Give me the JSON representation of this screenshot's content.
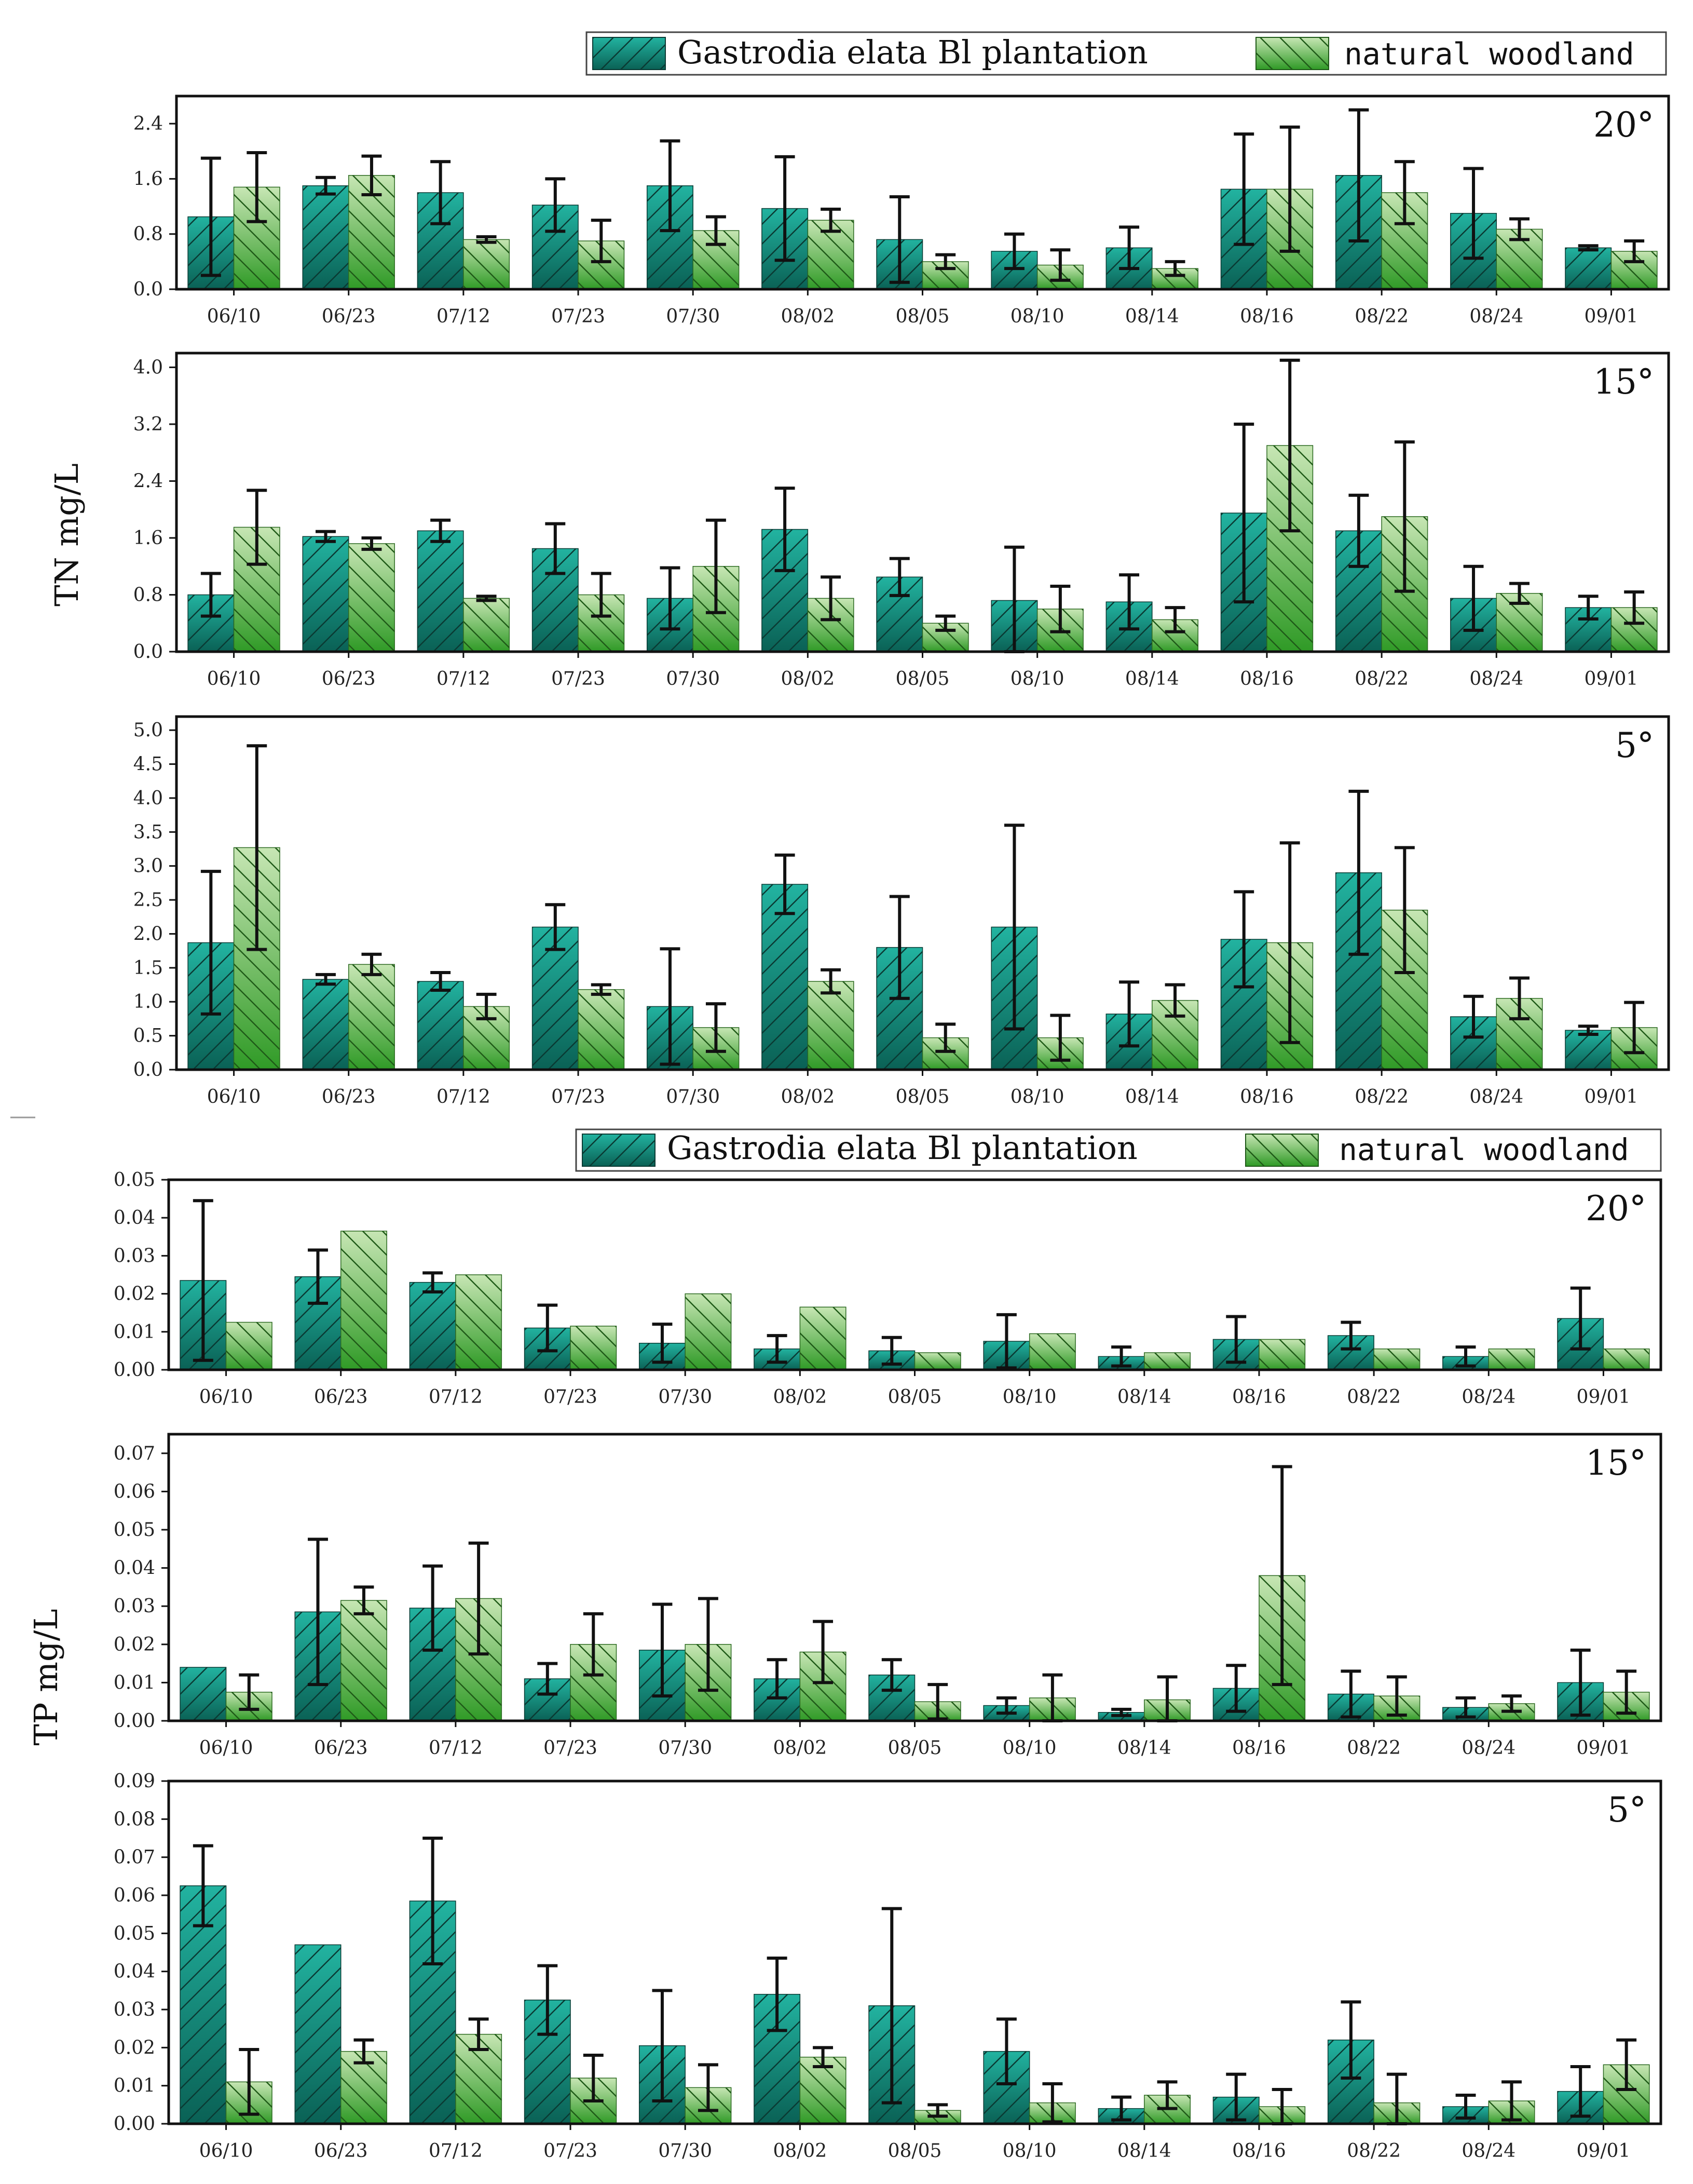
{
  "colors": {
    "plantation": "#16a08f",
    "plantation_dark": "#0c5a50",
    "woodland": "#8fcf6a",
    "woodland_dark": "#3e9a2f"
  },
  "legend_top": {
    "series1": "Gastrodia elata Bl plantation",
    "series2": "natural woodland"
  },
  "legend_bottom": {
    "series1": "Gastrodia elata Bl plantation",
    "series2": "natural woodland"
  },
  "ylabels": {
    "tn": "TN mg/L",
    "tp": "TP mg/L"
  },
  "chart_data": [
    {
      "type": "bar",
      "title": "20°",
      "ylabel": "TN mg/L",
      "ylim": [
        0,
        2.8
      ],
      "yticks": [
        "0.0",
        "0.8",
        "1.6",
        "2.4"
      ],
      "categories": [
        "06/10",
        "06/23",
        "07/12",
        "07/23",
        "07/30",
        "08/02",
        "08/05",
        "08/10",
        "08/14",
        "08/16",
        "08/22",
        "08/24",
        "09/01"
      ],
      "series": [
        {
          "name": "Gastrodia elata Bl plantation",
          "values": [
            1.05,
            1.5,
            1.4,
            1.22,
            1.5,
            1.17,
            0.72,
            0.55,
            0.6,
            1.45,
            1.65,
            1.1,
            0.6
          ],
          "errors": [
            0.85,
            0.12,
            0.45,
            0.38,
            0.65,
            0.75,
            0.62,
            0.25,
            0.3,
            0.8,
            0.95,
            0.65,
            0.03
          ]
        },
        {
          "name": "natural woodland",
          "values": [
            1.48,
            1.65,
            0.72,
            0.7,
            0.85,
            1.0,
            0.4,
            0.35,
            0.3,
            1.45,
            1.4,
            0.87,
            0.55
          ],
          "errors": [
            0.5,
            0.28,
            0.04,
            0.3,
            0.2,
            0.16,
            0.1,
            0.22,
            0.1,
            0.9,
            0.45,
            0.15,
            0.15
          ]
        }
      ]
    },
    {
      "type": "bar",
      "title": "15°",
      "ylabel": "TN mg/L",
      "ylim": [
        0,
        4.2
      ],
      "yticks": [
        "0.0",
        "0.8",
        "1.6",
        "2.4",
        "3.2",
        "4.0"
      ],
      "categories": [
        "06/10",
        "06/23",
        "07/12",
        "07/23",
        "07/30",
        "08/02",
        "08/05",
        "08/10",
        "08/14",
        "08/16",
        "08/22",
        "08/24",
        "09/01"
      ],
      "series": [
        {
          "name": "Gastrodia elata Bl plantation",
          "values": [
            0.8,
            1.62,
            1.7,
            1.45,
            0.75,
            1.72,
            1.05,
            0.72,
            0.7,
            1.95,
            1.7,
            0.75,
            0.62
          ],
          "errors": [
            0.3,
            0.07,
            0.15,
            0.35,
            0.43,
            0.58,
            0.26,
            0.75,
            0.38,
            1.25,
            0.5,
            0.45,
            0.16
          ]
        },
        {
          "name": "natural woodland",
          "values": [
            1.75,
            1.52,
            0.75,
            0.8,
            1.2,
            0.75,
            0.4,
            0.6,
            0.45,
            2.9,
            1.9,
            0.82,
            0.62
          ],
          "errors": [
            0.52,
            0.08,
            0.03,
            0.3,
            0.65,
            0.3,
            0.1,
            0.32,
            0.17,
            1.2,
            1.05,
            0.14,
            0.22
          ]
        }
      ]
    },
    {
      "type": "bar",
      "title": "5°",
      "ylabel": "TN mg/L",
      "ylim": [
        0,
        5.2
      ],
      "yticks": [
        "0.0",
        "0.5",
        "1.0",
        "1.5",
        "2.0",
        "2.5",
        "3.0",
        "3.5",
        "4.0",
        "4.5",
        "5.0"
      ],
      "categories": [
        "06/10",
        "06/23",
        "07/12",
        "07/23",
        "07/30",
        "08/02",
        "08/05",
        "08/10",
        "08/14",
        "08/16",
        "08/22",
        "08/24",
        "09/01"
      ],
      "series": [
        {
          "name": "Gastrodia elata Bl plantation",
          "values": [
            1.87,
            1.33,
            1.3,
            2.1,
            0.93,
            2.73,
            1.8,
            2.1,
            0.82,
            1.92,
            2.9,
            0.78,
            0.58
          ],
          "errors": [
            1.05,
            0.07,
            0.13,
            0.33,
            0.85,
            0.43,
            0.75,
            1.5,
            0.47,
            0.7,
            1.2,
            0.3,
            0.06
          ]
        },
        {
          "name": "natural woodland",
          "values": [
            3.27,
            1.55,
            0.93,
            1.18,
            0.62,
            1.3,
            0.47,
            0.47,
            1.02,
            1.87,
            2.35,
            1.05,
            0.62
          ],
          "errors": [
            1.5,
            0.15,
            0.18,
            0.07,
            0.35,
            0.17,
            0.2,
            0.33,
            0.23,
            1.47,
            0.92,
            0.3,
            0.37
          ]
        }
      ]
    },
    {
      "type": "bar",
      "title": "20°",
      "ylabel": "TP mg/L",
      "ylim": [
        0,
        0.05
      ],
      "yticks": [
        "0.00",
        "0.01",
        "0.02",
        "0.03",
        "0.04",
        "0.05"
      ],
      "categories": [
        "06/10",
        "06/23",
        "07/12",
        "07/23",
        "07/30",
        "08/02",
        "08/05",
        "08/10",
        "08/14",
        "08/16",
        "08/22",
        "08/24",
        "09/01"
      ],
      "series": [
        {
          "name": "Gastrodia elata Bl plantation",
          "values": [
            0.0235,
            0.0245,
            0.023,
            0.011,
            0.007,
            0.0055,
            0.005,
            0.0075,
            0.0035,
            0.008,
            0.009,
            0.0035,
            0.0135
          ],
          "errors": [
            0.021,
            0.007,
            0.0025,
            0.006,
            0.005,
            0.0035,
            0.0035,
            0.007,
            0.0025,
            0.006,
            0.0035,
            0.0025,
            0.008
          ]
        },
        {
          "name": "natural woodland",
          "values": [
            0.0125,
            0.0365,
            0.025,
            0.0115,
            0.02,
            0.0165,
            0.0045,
            0.0095,
            0.0045,
            0.008,
            0.0055,
            0.0055,
            0.0055
          ]
        }
      ]
    },
    {
      "type": "bar",
      "title": "15°",
      "ylabel": "TP mg/L",
      "ylim": [
        0,
        0.075
      ],
      "yticks": [
        "0.00",
        "0.01",
        "0.02",
        "0.03",
        "0.04",
        "0.05",
        "0.06",
        "0.07"
      ],
      "categories": [
        "06/10",
        "06/23",
        "07/12",
        "07/23",
        "07/30",
        "08/02",
        "08/05",
        "08/10",
        "08/14",
        "08/16",
        "08/22",
        "08/24",
        "09/01"
      ],
      "series": [
        {
          "name": "Gastrodia elata Bl plantation",
          "values": [
            0.014,
            0.0285,
            0.0295,
            0.011,
            0.0185,
            0.011,
            0.012,
            0.004,
            0.0022,
            0.0085,
            0.007,
            0.0035,
            0.01
          ],
          "errors": [
            0,
            0.019,
            0.011,
            0.004,
            0.012,
            0.005,
            0.004,
            0.002,
            0.0008,
            0.006,
            0.006,
            0.0025,
            0.0085
          ]
        },
        {
          "name": "natural woodland",
          "values": [
            0.0075,
            0.0315,
            0.032,
            0.02,
            0.02,
            0.018,
            0.005,
            0.006,
            0.0055,
            0.038,
            0.0065,
            0.0045,
            0.0075
          ],
          "errors": [
            0.0045,
            0.0035,
            0.0145,
            0.008,
            0.012,
            0.008,
            0.0045,
            0.006,
            0.006,
            0.0285,
            0.005,
            0.002,
            0.0055
          ]
        }
      ]
    },
    {
      "type": "bar",
      "title": "5°",
      "ylabel": "TP mg/L",
      "ylim": [
        0,
        0.09
      ],
      "yticks": [
        "0.00",
        "0.01",
        "0.02",
        "0.03",
        "0.04",
        "0.05",
        "0.06",
        "0.07",
        "0.08",
        "0.09"
      ],
      "categories": [
        "06/10",
        "06/23",
        "07/12",
        "07/23",
        "07/30",
        "08/02",
        "08/05",
        "08/10",
        "08/14",
        "08/16",
        "08/22",
        "08/24",
        "09/01"
      ],
      "series": [
        {
          "name": "Gastrodia elata Bl plantation",
          "values": [
            0.0625,
            0.047,
            0.0585,
            0.0325,
            0.0205,
            0.034,
            0.031,
            0.019,
            0.004,
            0.007,
            0.022,
            0.0045,
            0.0085
          ],
          "errors": [
            0.0105,
            0,
            0.0165,
            0.009,
            0.0145,
            0.0095,
            0.0255,
            0.0085,
            0.003,
            0.006,
            0.01,
            0.003,
            0.0065
          ]
        },
        {
          "name": "natural woodland",
          "values": [
            0.011,
            0.019,
            0.0235,
            0.012,
            0.0095,
            0.0175,
            0.0035,
            0.0055,
            0.0075,
            0.0045,
            0.0055,
            0.006,
            0.0155
          ],
          "errors": [
            0.0085,
            0.003,
            0.004,
            0.006,
            0.006,
            0.0025,
            0.0015,
            0.005,
            0.0035,
            0.0045,
            0.0075,
            0.005,
            0.0065
          ]
        }
      ]
    }
  ]
}
